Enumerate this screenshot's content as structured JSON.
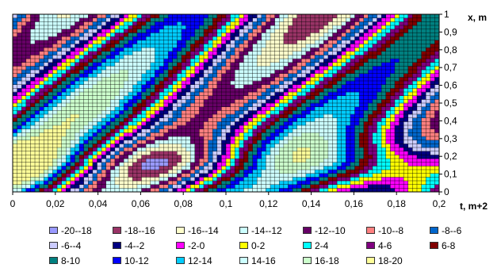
{
  "chart_data": {
    "type": "heatmap",
    "title": "",
    "xlabel": "t, m+2",
    "ylabel": "x, m",
    "xlim": [
      0,
      0.2
    ],
    "ylim": [
      0,
      1
    ],
    "x_ticks": [
      "0",
      "0,02",
      "0,04",
      "0,06",
      "0,08",
      "0,1",
      "0,12",
      "0,14",
      "0,16",
      "0,18",
      "0,2"
    ],
    "y_ticks": [
      "0",
      "0,1",
      "0,2",
      "0,3",
      "0,4",
      "0,5",
      "0,6",
      "0,7",
      "0,8",
      "0,9",
      "1"
    ],
    "grid": true,
    "legend_position": "bottom",
    "levels": [
      {
        "label": "-20--18",
        "color": "#9999ff"
      },
      {
        "label": "-18--16",
        "color": "#993366"
      },
      {
        "label": "-16--14",
        "color": "#ffffcc"
      },
      {
        "label": "-14--12",
        "color": "#ccffff"
      },
      {
        "label": "-12--10",
        "color": "#660066"
      },
      {
        "label": "-10--8",
        "color": "#ff8080"
      },
      {
        "label": "-8--6",
        "color": "#0066cc"
      },
      {
        "label": "-6--4",
        "color": "#ccccff"
      },
      {
        "label": "-4--2",
        "color": "#000080"
      },
      {
        "label": "-2-0",
        "color": "#ff00ff"
      },
      {
        "label": "0-2",
        "color": "#ffff00"
      },
      {
        "label": "2-4",
        "color": "#00ffff"
      },
      {
        "label": "4-6",
        "color": "#800080"
      },
      {
        "label": "6-8",
        "color": "#800000"
      },
      {
        "label": "8-10",
        "color": "#008080"
      },
      {
        "label": "10-12",
        "color": "#0000ff"
      },
      {
        "label": "12-14",
        "color": "#00ccff"
      },
      {
        "label": "14-16",
        "color": "#ccffff"
      },
      {
        "label": "16-18",
        "color": "#ccffcc"
      },
      {
        "label": "18-20",
        "color": "#ffff99"
      }
    ]
  }
}
